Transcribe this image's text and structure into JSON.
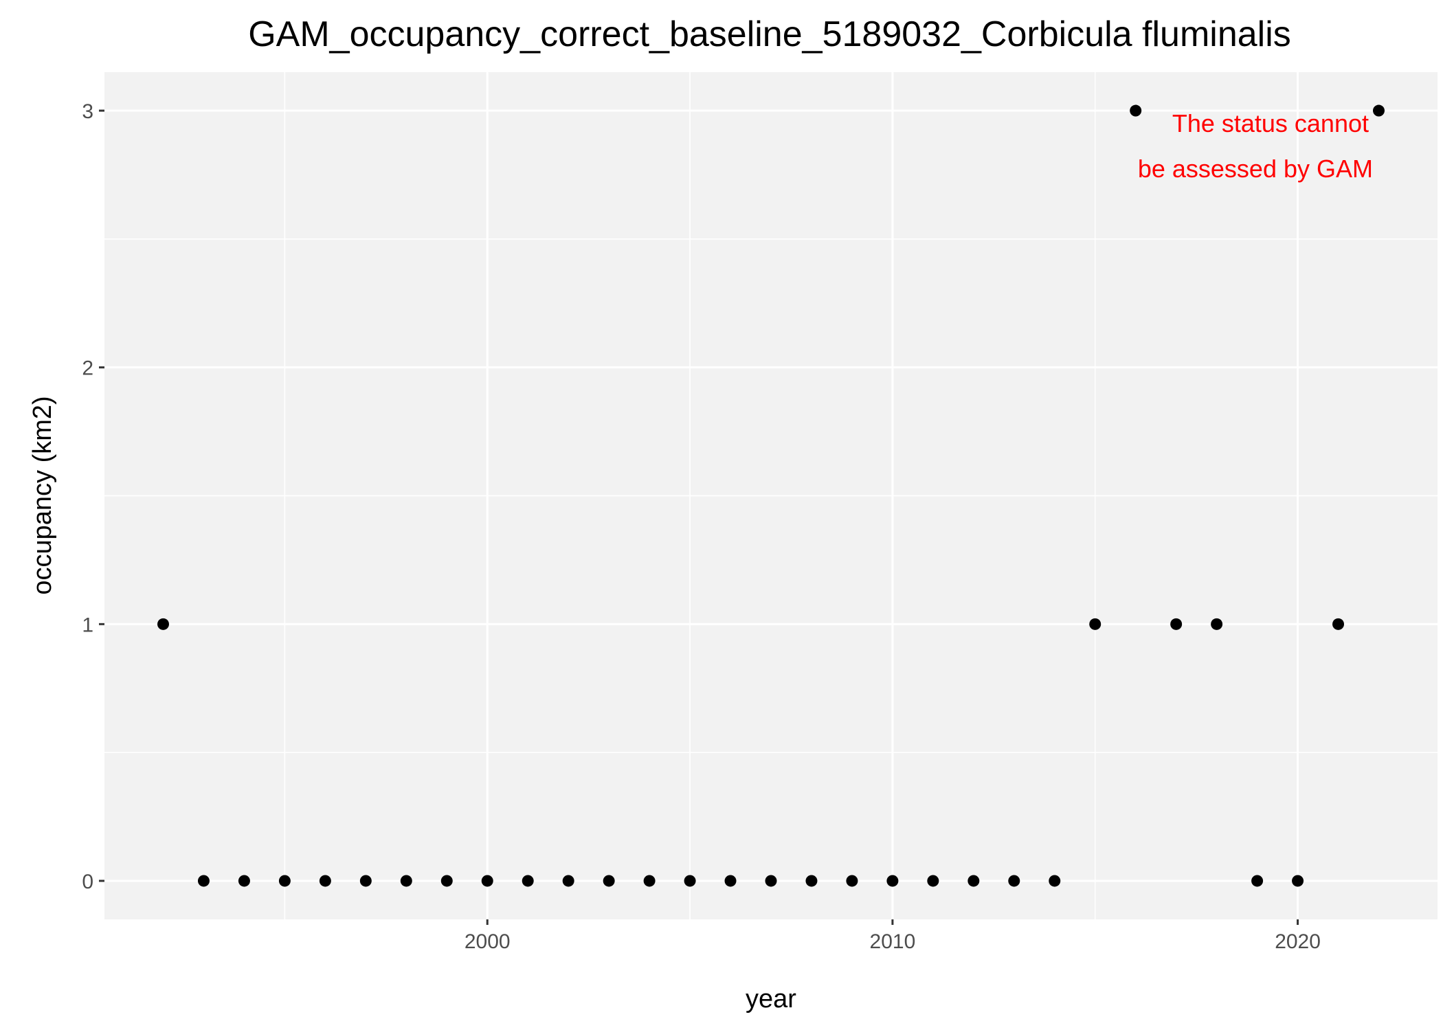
{
  "chart_data": {
    "type": "scatter",
    "title": "GAM_occupancy_correct_baseline_5189032_Corbicula fluminalis",
    "xlabel": "year",
    "ylabel": "occupancy (km2)",
    "x": [
      1992,
      1993,
      1994,
      1995,
      1996,
      1997,
      1998,
      1999,
      2000,
      2001,
      2002,
      2003,
      2004,
      2005,
      2006,
      2007,
      2008,
      2009,
      2010,
      2011,
      2012,
      2013,
      2014,
      2015,
      2016,
      2017,
      2018,
      2019,
      2020,
      2021,
      2022
    ],
    "y": [
      1,
      0,
      0,
      0,
      0,
      0,
      0,
      0,
      0,
      0,
      0,
      0,
      0,
      0,
      0,
      0,
      0,
      0,
      0,
      0,
      0,
      0,
      0,
      1,
      3,
      1,
      1,
      0,
      0,
      1,
      3
    ],
    "xlim": [
      1990.55,
      2023.45
    ],
    "ylim": [
      -0.15,
      3.15
    ],
    "x_ticks": [
      "2000",
      "2010",
      "2020"
    ],
    "y_ticks": [
      "0",
      "1",
      "2",
      "3"
    ],
    "grid": true,
    "annotation": [
      "The status cannot",
      "be assessed by GAM"
    ],
    "colors": {
      "panel": "#f2f2f2",
      "grid": "#ffffff",
      "point": "#000000",
      "annotation": "#ff0000"
    }
  }
}
